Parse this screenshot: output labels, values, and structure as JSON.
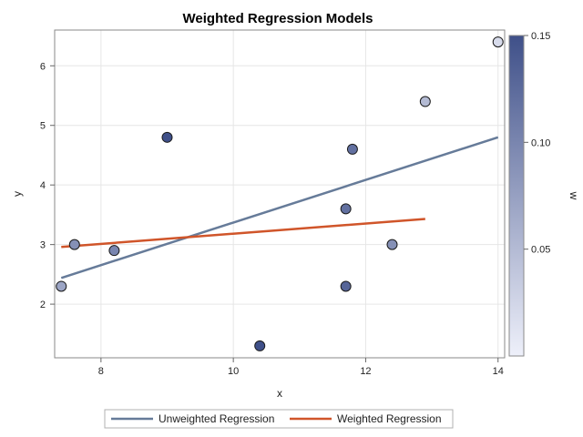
{
  "chart_data": {
    "type": "scatter",
    "title": "Weighted Regression Models",
    "xlabel": "x",
    "ylabel": "y",
    "xlim": [
      7.3,
      14.1
    ],
    "ylim": [
      1.1,
      6.6
    ],
    "x_ticks": [
      8,
      10,
      12,
      14
    ],
    "y_ticks": [
      2,
      3,
      4,
      5,
      6
    ],
    "grid": true,
    "points": [
      {
        "x": 7.4,
        "y": 2.3,
        "w": 0.07
      },
      {
        "x": 7.6,
        "y": 3.0,
        "w": 0.09
      },
      {
        "x": 8.2,
        "y": 2.9,
        "w": 0.1
      },
      {
        "x": 9.0,
        "y": 4.8,
        "w": 0.15
      },
      {
        "x": 10.4,
        "y": 1.3,
        "w": 0.15
      },
      {
        "x": 11.7,
        "y": 3.6,
        "w": 0.12
      },
      {
        "x": 11.7,
        "y": 2.3,
        "w": 0.13
      },
      {
        "x": 11.8,
        "y": 4.6,
        "w": 0.12
      },
      {
        "x": 12.4,
        "y": 3.0,
        "w": 0.09
      },
      {
        "x": 12.9,
        "y": 5.4,
        "w": 0.05
      },
      {
        "x": 14.0,
        "y": 6.4,
        "w": 0.02
      }
    ],
    "series": [
      {
        "name": "Unweighted Regression",
        "color": "#667b99",
        "x": [
          7.4,
          14.0
        ],
        "y": [
          2.44,
          4.8
        ]
      },
      {
        "name": "Weighted Regression",
        "color": "#d0552a",
        "x": [
          7.4,
          12.9
        ],
        "y": [
          2.96,
          3.43
        ]
      }
    ],
    "colorbar": {
      "label": "w",
      "range": [
        0,
        0.15
      ],
      "ticks": [
        0.05,
        0.1,
        0.15
      ],
      "tick_labels": [
        "0.05",
        "0.10",
        "0.15"
      ],
      "color_low": "#eef0fa",
      "color_high": "#3f5089"
    },
    "legend": {
      "placement": "bottom"
    }
  }
}
